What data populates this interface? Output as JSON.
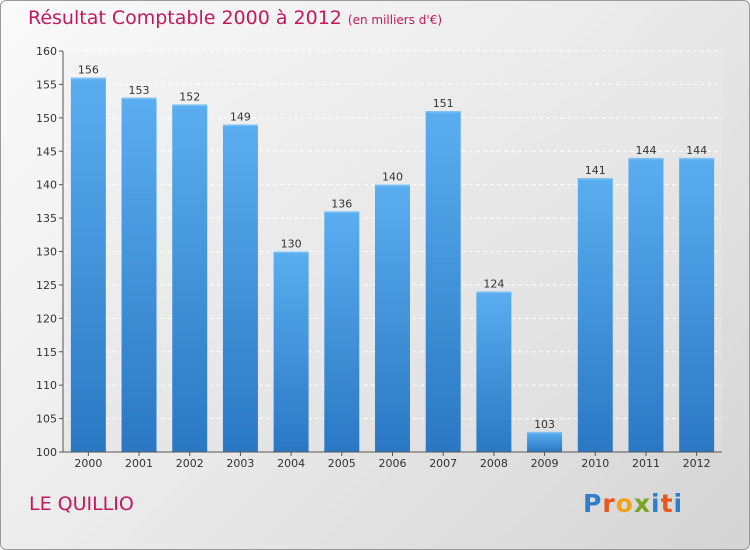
{
  "chart_data": {
    "type": "bar",
    "title": "Résultat Comptable 2000 à 2012",
    "unit_label": "(en milliers d'€)",
    "categories": [
      "2000",
      "2001",
      "2002",
      "2003",
      "2004",
      "2005",
      "2006",
      "2007",
      "2008",
      "2009",
      "2010",
      "2011",
      "2012"
    ],
    "values": [
      156,
      153,
      152,
      149,
      130,
      136,
      140,
      151,
      124,
      103,
      141,
      144,
      144
    ],
    "ylim": [
      100,
      160
    ],
    "yticks": [
      100,
      105,
      110,
      115,
      120,
      125,
      130,
      135,
      140,
      145,
      150,
      155,
      160
    ],
    "xlabel": "",
    "ylabel": "",
    "grid": true,
    "bar_color": "#4a9de0"
  },
  "location": "LE QUILLIO",
  "brand": {
    "letters": [
      "P",
      "r",
      "o",
      "x",
      "i",
      "t",
      "i"
    ],
    "colors": [
      "#2e7ec8",
      "#e8571c",
      "#f0a21a",
      "#7aa52a",
      "#2e7ec8",
      "#e8571c",
      "#2e7ec8"
    ]
  },
  "colors": {
    "accent": "#c3185b"
  }
}
